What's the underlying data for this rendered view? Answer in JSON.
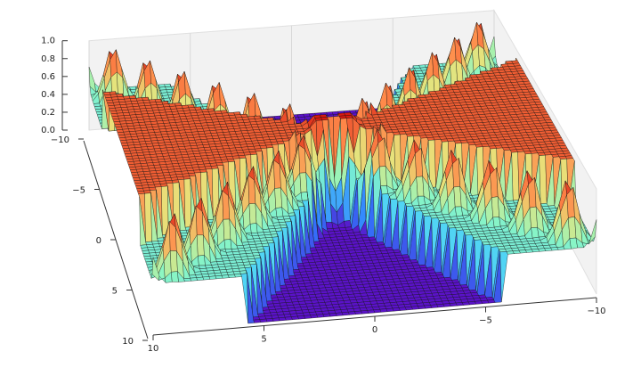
{
  "chart_data": {
    "type": "surface3d",
    "title": "",
    "xlabel": "",
    "ylabel": "",
    "zlabel": "",
    "colormap": "rainbow",
    "colormap_stops": [
      "#5a12c8",
      "#2f7bff",
      "#4fd3f5",
      "#8cf7c3",
      "#e8e27a",
      "#ff8a4a",
      "#d81a10"
    ],
    "x_range": [
      -10,
      10
    ],
    "y_range": [
      -10,
      10
    ],
    "z_range": [
      0.0,
      1.0
    ],
    "x_ticks": [
      "10",
      "5",
      "0",
      "−5",
      "−10"
    ],
    "y_ticks": [
      "−10",
      "−5",
      "0",
      "5",
      "10"
    ],
    "z_ticks": [
      "1.0",
      "0.8",
      "0.6",
      "0.4",
      "0.2",
      "0.0"
    ],
    "surface": {
      "description_values": {
        "flat_regions": [
          0.0,
          0.5,
          1.0
        ],
        "grid_resolution": 70
      }
    },
    "grid": true,
    "pane_color": "#f2f2f2"
  }
}
